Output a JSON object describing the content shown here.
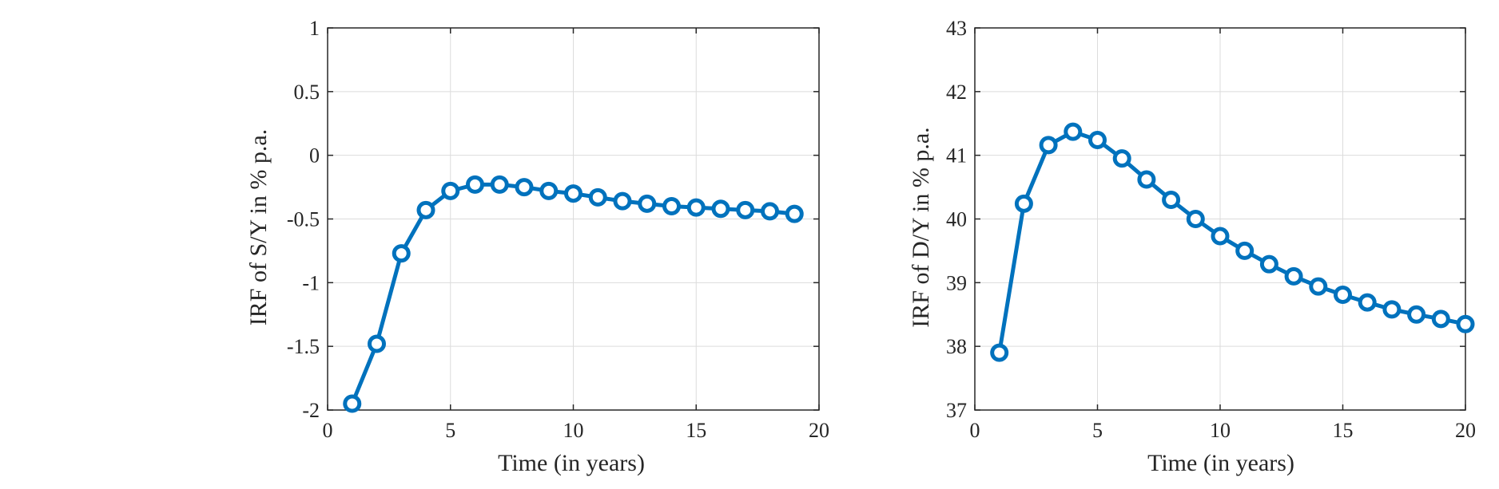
{
  "colors": {
    "series": "#0072BD",
    "grid": "#dcdcdc",
    "axis": "#262626",
    "background": "#ffffff"
  },
  "chart_data": [
    {
      "type": "line",
      "xlabel": "Time (in years)",
      "ylabel": "IRF of S/Y in % p.a.",
      "xlim": [
        0,
        20
      ],
      "ylim": [
        -2,
        1
      ],
      "xticks": [
        "0",
        "5",
        "10",
        "15",
        "20"
      ],
      "yticks": [
        "-2",
        "-1.5",
        "-1",
        "-0.5",
        "0",
        "0.5",
        "1"
      ],
      "grid": true,
      "marker": "circle",
      "series": [
        {
          "x": [
            1,
            2,
            3,
            4,
            5,
            6,
            7,
            8,
            9,
            10,
            11,
            12,
            13,
            14,
            15,
            16,
            17,
            18,
            19
          ],
          "y": [
            -1.95,
            -1.48,
            -0.77,
            -0.43,
            -0.28,
            -0.23,
            -0.23,
            -0.25,
            -0.28,
            -0.3,
            -0.33,
            -0.36,
            -0.38,
            -0.4,
            -0.41,
            -0.42,
            -0.43,
            -0.44,
            -0.46
          ]
        }
      ]
    },
    {
      "type": "line",
      "xlabel": "Time (in years)",
      "ylabel": "IRF of D/Y in % p.a.",
      "xlim": [
        0,
        20
      ],
      "ylim": [
        37,
        43
      ],
      "xticks": [
        "0",
        "5",
        "10",
        "15",
        "20"
      ],
      "yticks": [
        "37",
        "38",
        "39",
        "40",
        "41",
        "42",
        "43"
      ],
      "grid": true,
      "marker": "circle",
      "series": [
        {
          "x": [
            1,
            2,
            3,
            4,
            5,
            6,
            7,
            8,
            9,
            10,
            11,
            12,
            13,
            14,
            15,
            16,
            17,
            18,
            19,
            20
          ],
          "y": [
            37.9,
            40.24,
            41.16,
            41.37,
            41.24,
            40.95,
            40.62,
            40.3,
            40.0,
            39.73,
            39.5,
            39.29,
            39.1,
            38.94,
            38.81,
            38.69,
            38.58,
            38.5,
            38.43,
            38.35
          ]
        }
      ]
    }
  ]
}
